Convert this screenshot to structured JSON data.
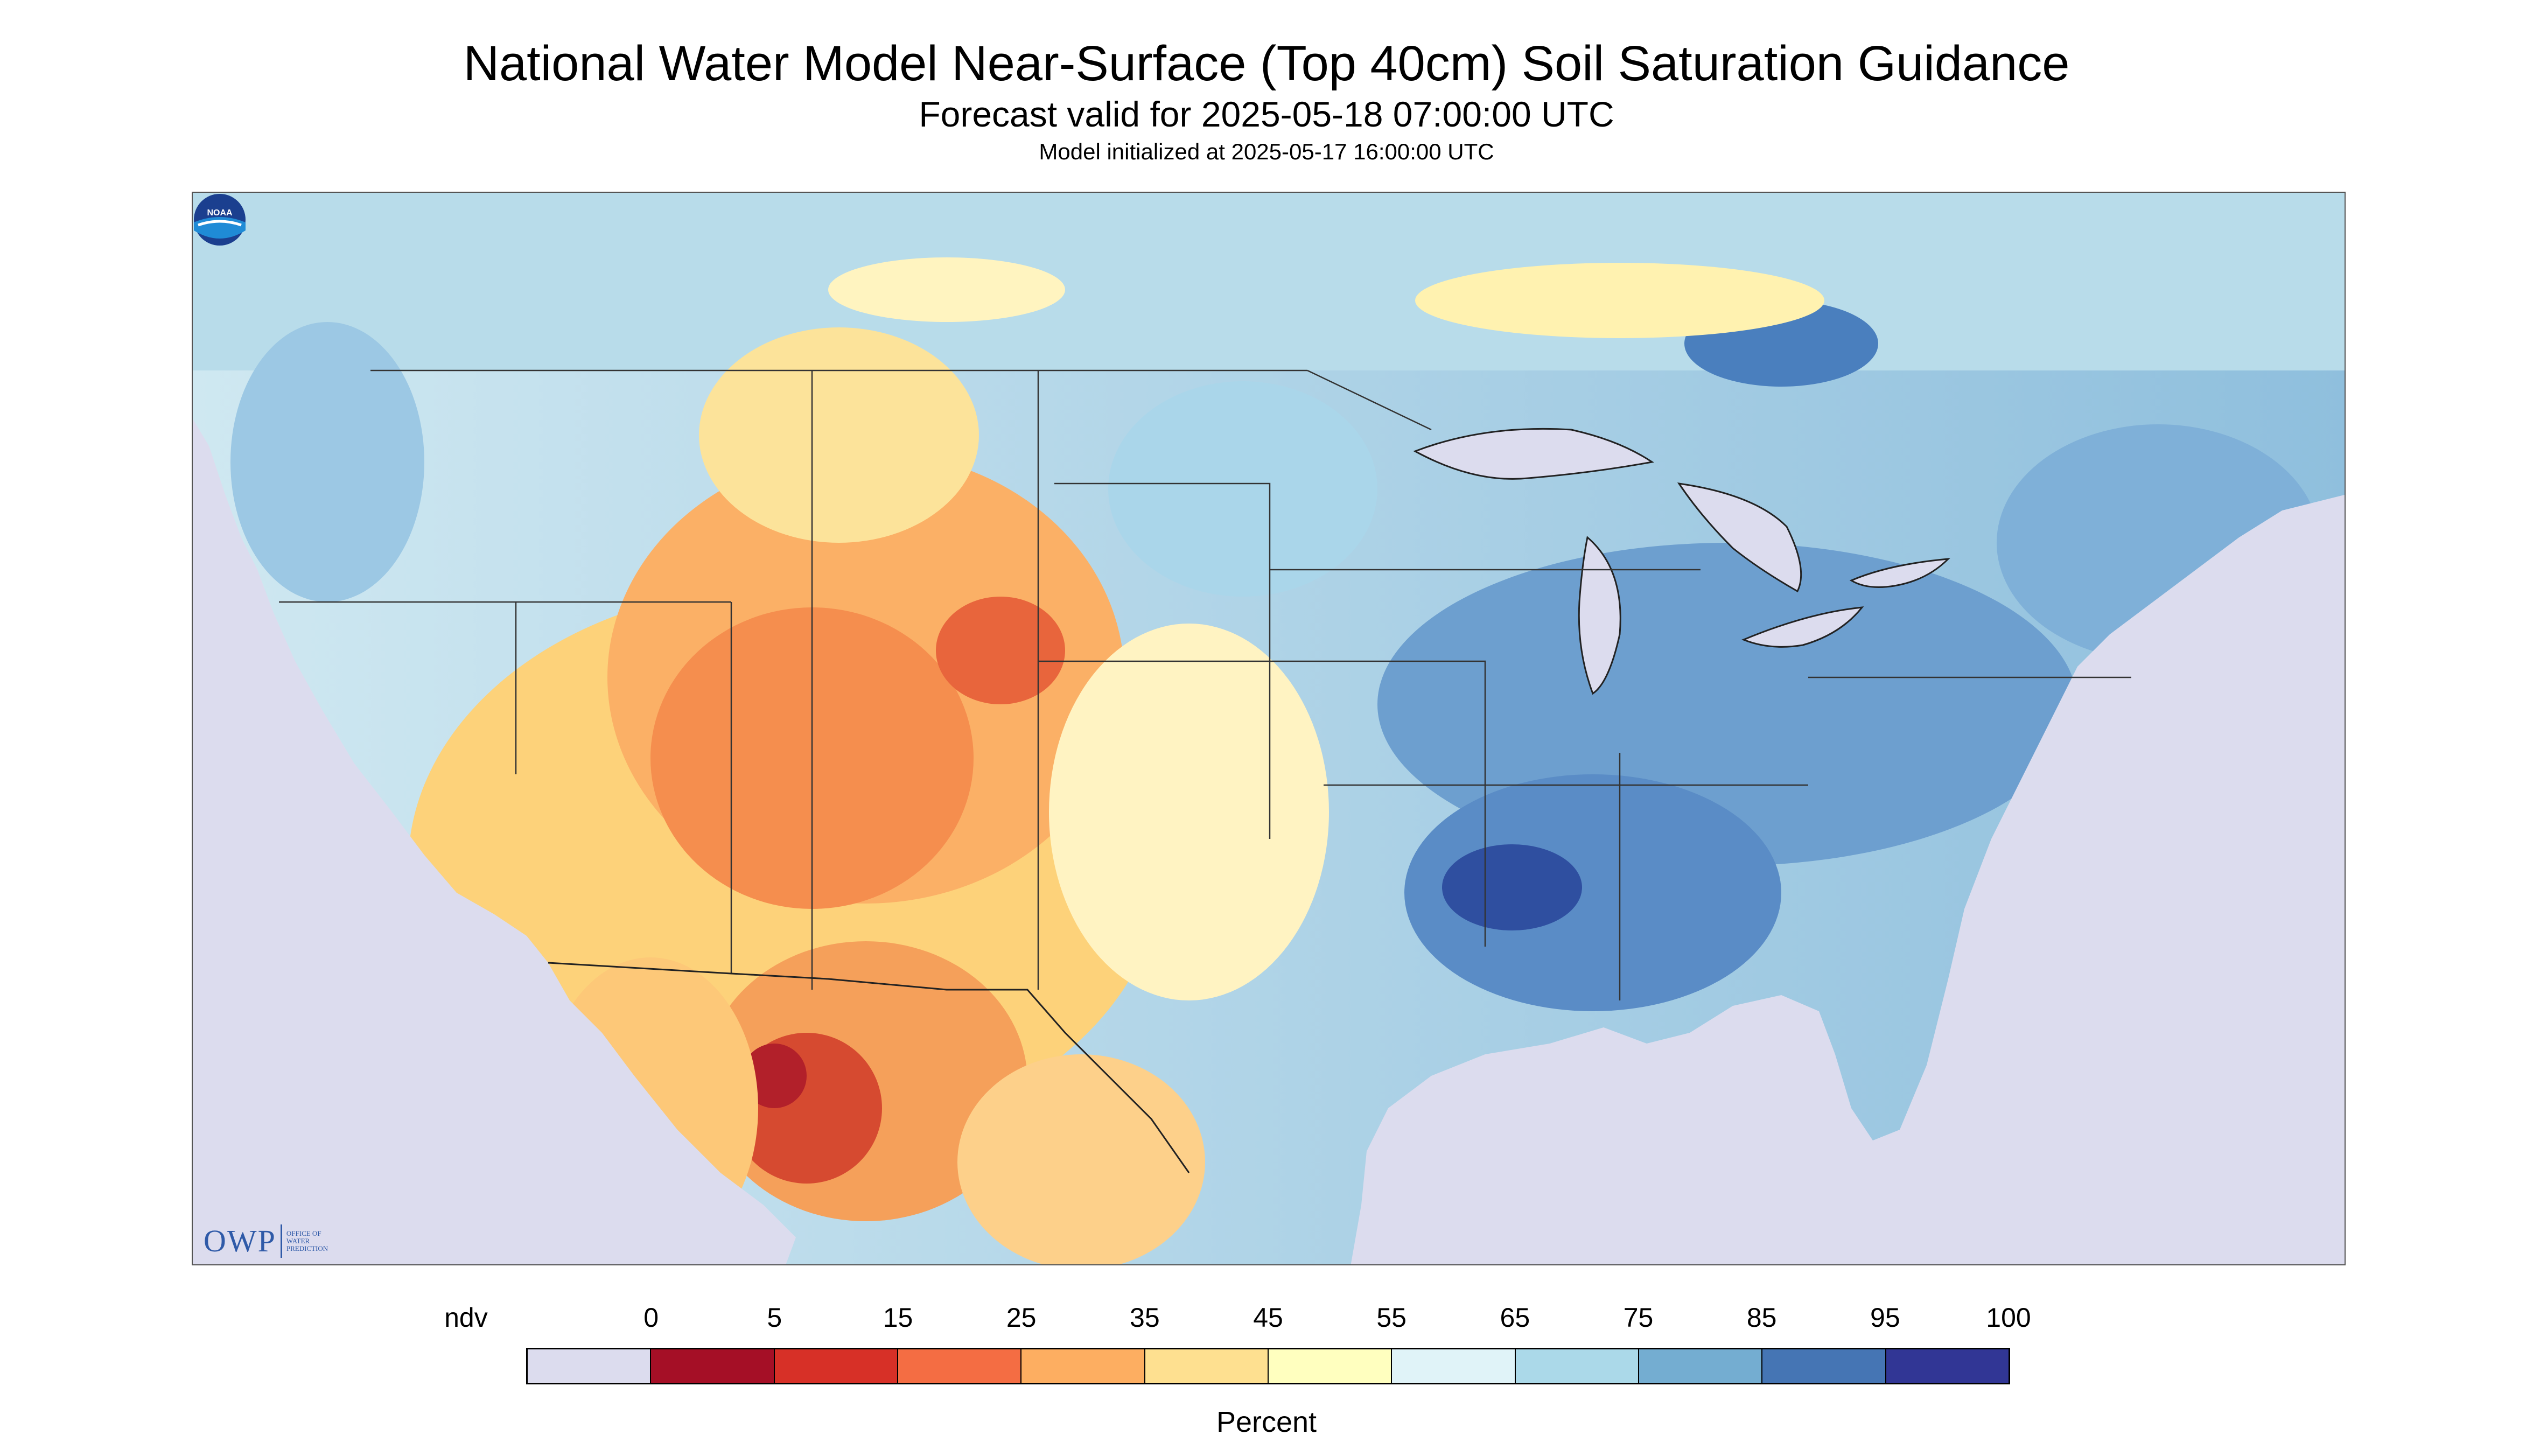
{
  "header": {
    "title": "National Water Model Near-Surface (Top 40cm) Soil Saturation Guidance",
    "subtitle": "Forecast valid for 2025-05-18 07:00:00 UTC",
    "init": "Model initialized at 2025-05-17 16:00:00 UTC"
  },
  "logos": {
    "owp_letters": "OWP",
    "owp_text": "OFFICE OF WATER PREDICTION",
    "noaa_text": "NOAA"
  },
  "legend": {
    "labels": [
      "ndv",
      "0",
      "5",
      "15",
      "25",
      "35",
      "45",
      "55",
      "65",
      "75",
      "85",
      "95",
      "100"
    ],
    "colors": [
      "#dcdcee",
      "#a50f26",
      "#d73027",
      "#f46d43",
      "#fdae61",
      "#fee090",
      "#ffffbf",
      "#e0f3f8",
      "#abd9e9",
      "#74add1",
      "#4575b4",
      "#313695"
    ],
    "unit": "Percent"
  },
  "map_colors": {
    "no_data": "#dcdcee",
    "water": "#dcdcee",
    "border": "#333333"
  }
}
